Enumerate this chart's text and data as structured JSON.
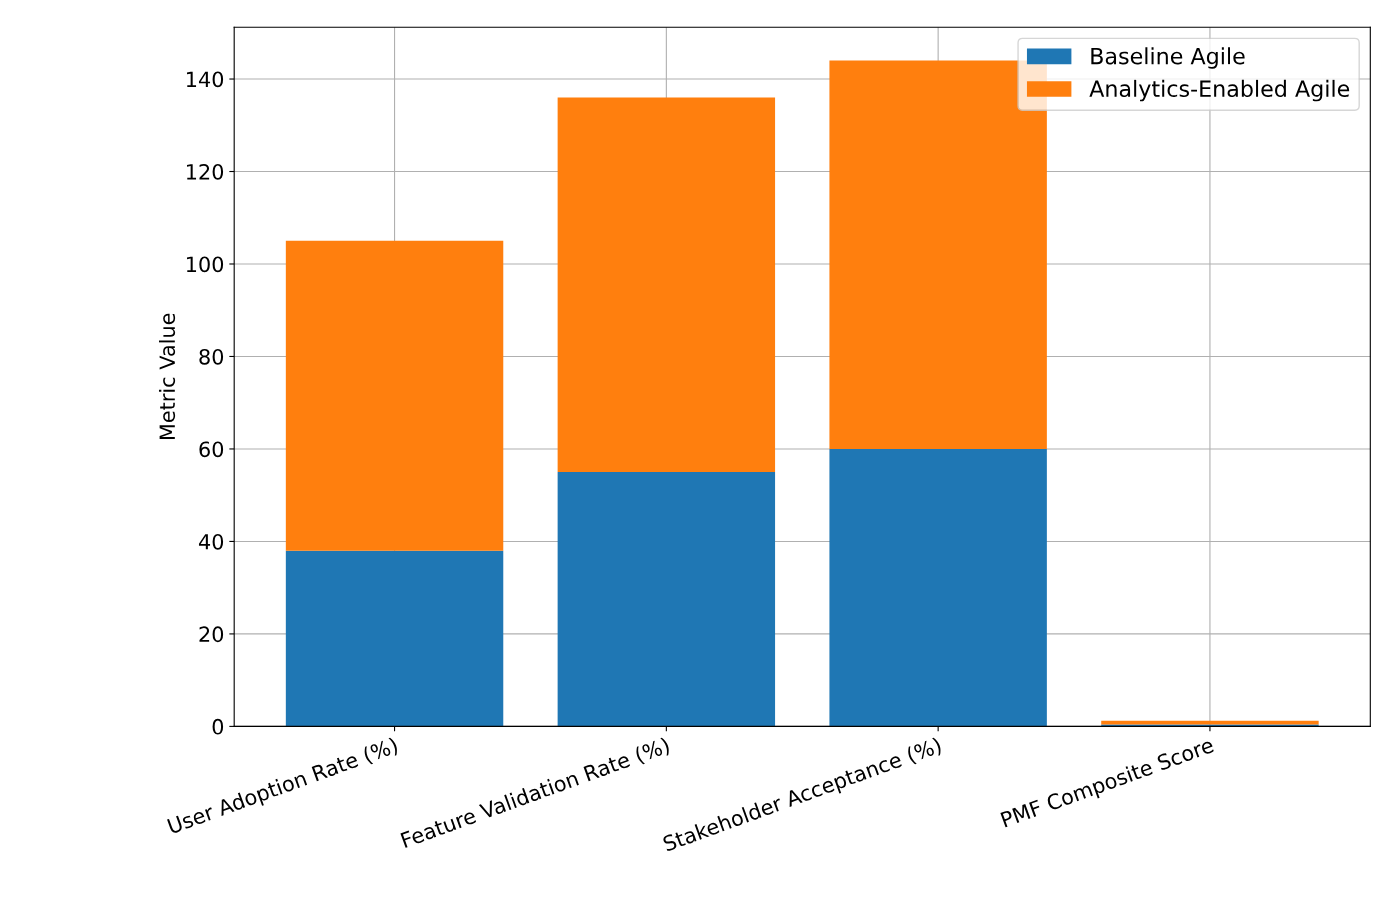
{
  "chart_data": {
    "type": "bar",
    "stacked": true,
    "ylabel": "Metric Value",
    "categories": [
      "User Adoption Rate (%)",
      "Feature Validation Rate (%)",
      "Stakeholder Acceptance (%)",
      "PMF Composite Score"
    ],
    "series": [
      {
        "name": "Baseline Agile",
        "color": "#1f77b4",
        "values": [
          38,
          55,
          60,
          0.4
        ]
      },
      {
        "name": "Analytics-Enabled Agile",
        "color": "#ff7f0e",
        "values": [
          67,
          81,
          84,
          0.8
        ]
      }
    ],
    "ylim": [
      0,
      151.2
    ],
    "yticks": [
      0,
      20,
      40,
      60,
      80,
      100,
      120,
      140
    ],
    "grid": true,
    "legend": "top right"
  }
}
